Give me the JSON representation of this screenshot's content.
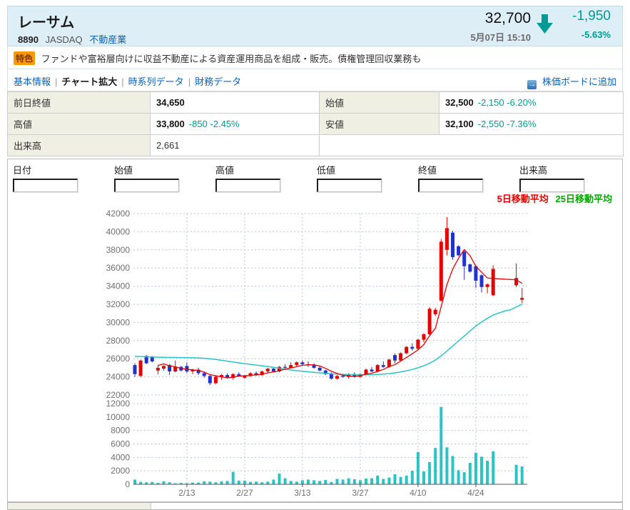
{
  "header": {
    "title": "レーサム",
    "code": "8890",
    "market": "JASDAQ",
    "industry": "不動産業",
    "price": "32,700",
    "datetime": "5月07日 15:10",
    "change": "-1,950",
    "change_pct": "-5.63%",
    "direction_icon": "down-arrow",
    "accent_color": "#009b96"
  },
  "feature": {
    "badge": "特色",
    "text": "ファンドや富裕層向けに収益不動産による資産運用商品を組成・販売。債権管理回収業務も"
  },
  "nav": {
    "items": [
      {
        "key": "basic-info",
        "label": "基本情報",
        "current": false
      },
      {
        "key": "chart-zoom",
        "label": "チャート拡大",
        "current": true
      },
      {
        "key": "time-series",
        "label": "時系列データ",
        "current": false
      },
      {
        "key": "financials",
        "label": "財務データ",
        "current": false
      }
    ],
    "add_board": "株価ボードに追加"
  },
  "summary": {
    "rows": [
      {
        "pairs": [
          {
            "key": "prev-close",
            "label": "前日終値",
            "value": "34,650",
            "delta": ""
          },
          {
            "key": "open",
            "label": "始値",
            "value": "32,500",
            "delta": "-2,150 -6.20%"
          }
        ]
      },
      {
        "pairs": [
          {
            "key": "high",
            "label": "高値",
            "value": "33,800",
            "delta": "-850 -2.45%"
          },
          {
            "key": "low",
            "label": "安値",
            "value": "32,100",
            "delta": "-2,550 -7.36%"
          }
        ]
      },
      {
        "pairs": [
          {
            "key": "volume",
            "label": "出来高",
            "value": "2,661",
            "delta": "",
            "plain": true
          }
        ]
      }
    ]
  },
  "form": {
    "fields": [
      {
        "key": "date",
        "label": "日付",
        "value": ""
      },
      {
        "key": "open",
        "label": "始値",
        "value": ""
      },
      {
        "key": "high",
        "label": "高値",
        "value": ""
      },
      {
        "key": "low",
        "label": "低値",
        "value": ""
      },
      {
        "key": "close",
        "label": "終値",
        "value": ""
      },
      {
        "key": "volume",
        "label": "出来高",
        "value": ""
      }
    ]
  },
  "legend": {
    "ma5_label": "5日移動平均",
    "ma25_label": "25日移動平均"
  },
  "chart_data": {
    "type": "candlestick_with_volume",
    "title": "",
    "price_axis": {
      "min": 22000,
      "max": 42000,
      "step": 2000
    },
    "volume_axis": {
      "min": 0,
      "max": 12000,
      "step": 2000
    },
    "y_ticks_price": [
      42000,
      40000,
      38000,
      36000,
      34000,
      32000,
      30000,
      28000,
      26000,
      24000,
      22000
    ],
    "y_ticks_volume": [
      12000,
      10000,
      8000,
      6000,
      4000,
      2000,
      0
    ],
    "x_labels": [
      {
        "index": 9,
        "label": "2/13"
      },
      {
        "index": 19,
        "label": "2/27"
      },
      {
        "index": 29,
        "label": "3/13"
      },
      {
        "index": 39,
        "label": "3/27"
      },
      {
        "index": 49,
        "label": "4/10"
      },
      {
        "index": 59,
        "label": "4/24"
      }
    ],
    "grid": true,
    "legend_position": "top-right",
    "series_legend": [
      {
        "name": "5日移動平均",
        "color": "#e60000"
      },
      {
        "name": "25日移動平均",
        "color": "#2bc4c4"
      }
    ],
    "candles_format": [
      "open",
      "high",
      "low",
      "close",
      "volume"
    ],
    "candles": [
      [
        25300,
        25500,
        24000,
        24300,
        700
      ],
      [
        24100,
        25900,
        24000,
        25800,
        350
      ],
      [
        26300,
        26400,
        25400,
        25500,
        300
      ],
      [
        26200,
        26300,
        25600,
        25700,
        350
      ],
      [
        24700,
        25300,
        24300,
        25000,
        200
      ],
      [
        24900,
        25300,
        24700,
        25200,
        450
      ],
      [
        25300,
        25400,
        24200,
        24600,
        300
      ],
      [
        24600,
        25800,
        24500,
        25100,
        150
      ],
      [
        25100,
        25200,
        24600,
        24700,
        200
      ],
      [
        25200,
        25600,
        24400,
        24600,
        150
      ],
      [
        24600,
        24900,
        24300,
        24800,
        250
      ],
      [
        24800,
        25000,
        24200,
        24400,
        250
      ],
      [
        24400,
        24600,
        23900,
        24100,
        450
      ],
      [
        24100,
        24300,
        23100,
        23300,
        400
      ],
      [
        23300,
        24100,
        23200,
        24000,
        300
      ],
      [
        24000,
        24300,
        23700,
        24200,
        450
      ],
      [
        24200,
        24400,
        23800,
        23900,
        500
      ],
      [
        23900,
        24400,
        23700,
        24300,
        1850
      ],
      [
        24300,
        24500,
        24000,
        24100,
        550
      ],
      [
        23900,
        24200,
        23800,
        24100,
        550
      ],
      [
        24100,
        24500,
        24000,
        24400,
        350
      ],
      [
        24400,
        24600,
        24100,
        24200,
        400
      ],
      [
        24200,
        24700,
        24100,
        24600,
        300
      ],
      [
        24600,
        25000,
        24400,
        24900,
        400
      ],
      [
        24900,
        25100,
        24500,
        24600,
        700
      ],
      [
        24600,
        25200,
        24500,
        25100,
        1600
      ],
      [
        25100,
        25400,
        24800,
        25000,
        900
      ],
      [
        25000,
        25600,
        24900,
        25300,
        500
      ],
      [
        25300,
        25700,
        25100,
        25600,
        400
      ],
      [
        25600,
        25800,
        25200,
        25400,
        600
      ],
      [
        25400,
        25700,
        25100,
        25300,
        700
      ],
      [
        25300,
        25500,
        24900,
        25000,
        600
      ],
      [
        25000,
        25200,
        24600,
        24700,
        500
      ],
      [
        24700,
        24800,
        24200,
        24300,
        650
      ],
      [
        24300,
        24500,
        23700,
        23800,
        350
      ],
      [
        23800,
        24200,
        23700,
        24100,
        800
      ],
      [
        24100,
        24300,
        23900,
        24000,
        700
      ],
      [
        24000,
        24400,
        23800,
        24300,
        900
      ],
      [
        24300,
        24500,
        23900,
        24000,
        750
      ],
      [
        24000,
        24400,
        23900,
        24300,
        600
      ],
      [
        24300,
        24900,
        24200,
        24800,
        850
      ],
      [
        24800,
        25100,
        24500,
        24600,
        900
      ],
      [
        24600,
        25400,
        24500,
        25300,
        1300
      ],
      [
        25300,
        25700,
        25000,
        25100,
        800
      ],
      [
        25100,
        26000,
        25000,
        25900,
        1000
      ],
      [
        26400,
        26600,
        25500,
        25800,
        1500
      ],
      [
        25800,
        26700,
        25700,
        26600,
        1100
      ],
      [
        26600,
        27400,
        26500,
        27300,
        1300
      ],
      [
        27300,
        27700,
        26900,
        27100,
        2000
      ],
      [
        27100,
        28200,
        27000,
        28100,
        4800
      ],
      [
        28100,
        28800,
        27800,
        28700,
        1900
      ],
      [
        28700,
        31700,
        28600,
        31500,
        3300
      ],
      [
        30900,
        31600,
        30700,
        31400,
        5400
      ],
      [
        32400,
        39200,
        32300,
        38900,
        11500
      ],
      [
        38000,
        41600,
        37400,
        40400,
        5500
      ],
      [
        39900,
        40100,
        36900,
        37200,
        4200
      ],
      [
        38400,
        38500,
        37300,
        37400,
        2100
      ],
      [
        37800,
        37900,
        34700,
        36200,
        1800
      ],
      [
        36400,
        36500,
        35500,
        35600,
        3200
      ],
      [
        36200,
        36300,
        33800,
        34600,
        4700
      ],
      [
        35200,
        35300,
        33300,
        33900,
        4100
      ],
      [
        33900,
        34300,
        33200,
        34200,
        3500
      ],
      [
        33000,
        36300,
        32900,
        35900,
        4900
      ],
      null,
      null,
      null,
      [
        34100,
        36500,
        33900,
        34900,
        2900
      ],
      [
        32500,
        33800,
        32100,
        32700,
        2661
      ]
    ],
    "ma5_window": 5,
    "ma25": [
      26250,
      26230,
      26210,
      26190,
      26170,
      26150,
      26140,
      26130,
      26120,
      26110,
      26100,
      26080,
      26050,
      26000,
      25920,
      25830,
      25730,
      25630,
      25540,
      25460,
      25380,
      25300,
      25220,
      25140,
      25050,
      24950,
      24850,
      24760,
      24680,
      24620,
      24560,
      24500,
      24440,
      24390,
      24340,
      24300,
      24270,
      24250,
      24240,
      24230,
      24230,
      24240,
      24260,
      24300,
      24360,
      24440,
      24540,
      24670,
      24820,
      25000,
      25220,
      25500,
      25850,
      26300,
      26850,
      27400,
      27950,
      28500,
      29050,
      29600,
      30050,
      30450,
      30800,
      31050,
      31250,
      31400,
      31700,
      32000
    ],
    "colors": {
      "up_candle": "#e60000",
      "down_candle": "#2233cc",
      "ma5": "#e60000",
      "ma25": "#2bc4c4",
      "volume": "#2bc4c4",
      "gridline": "#b9c6d6",
      "axis_text": "#6f6f6f"
    }
  }
}
